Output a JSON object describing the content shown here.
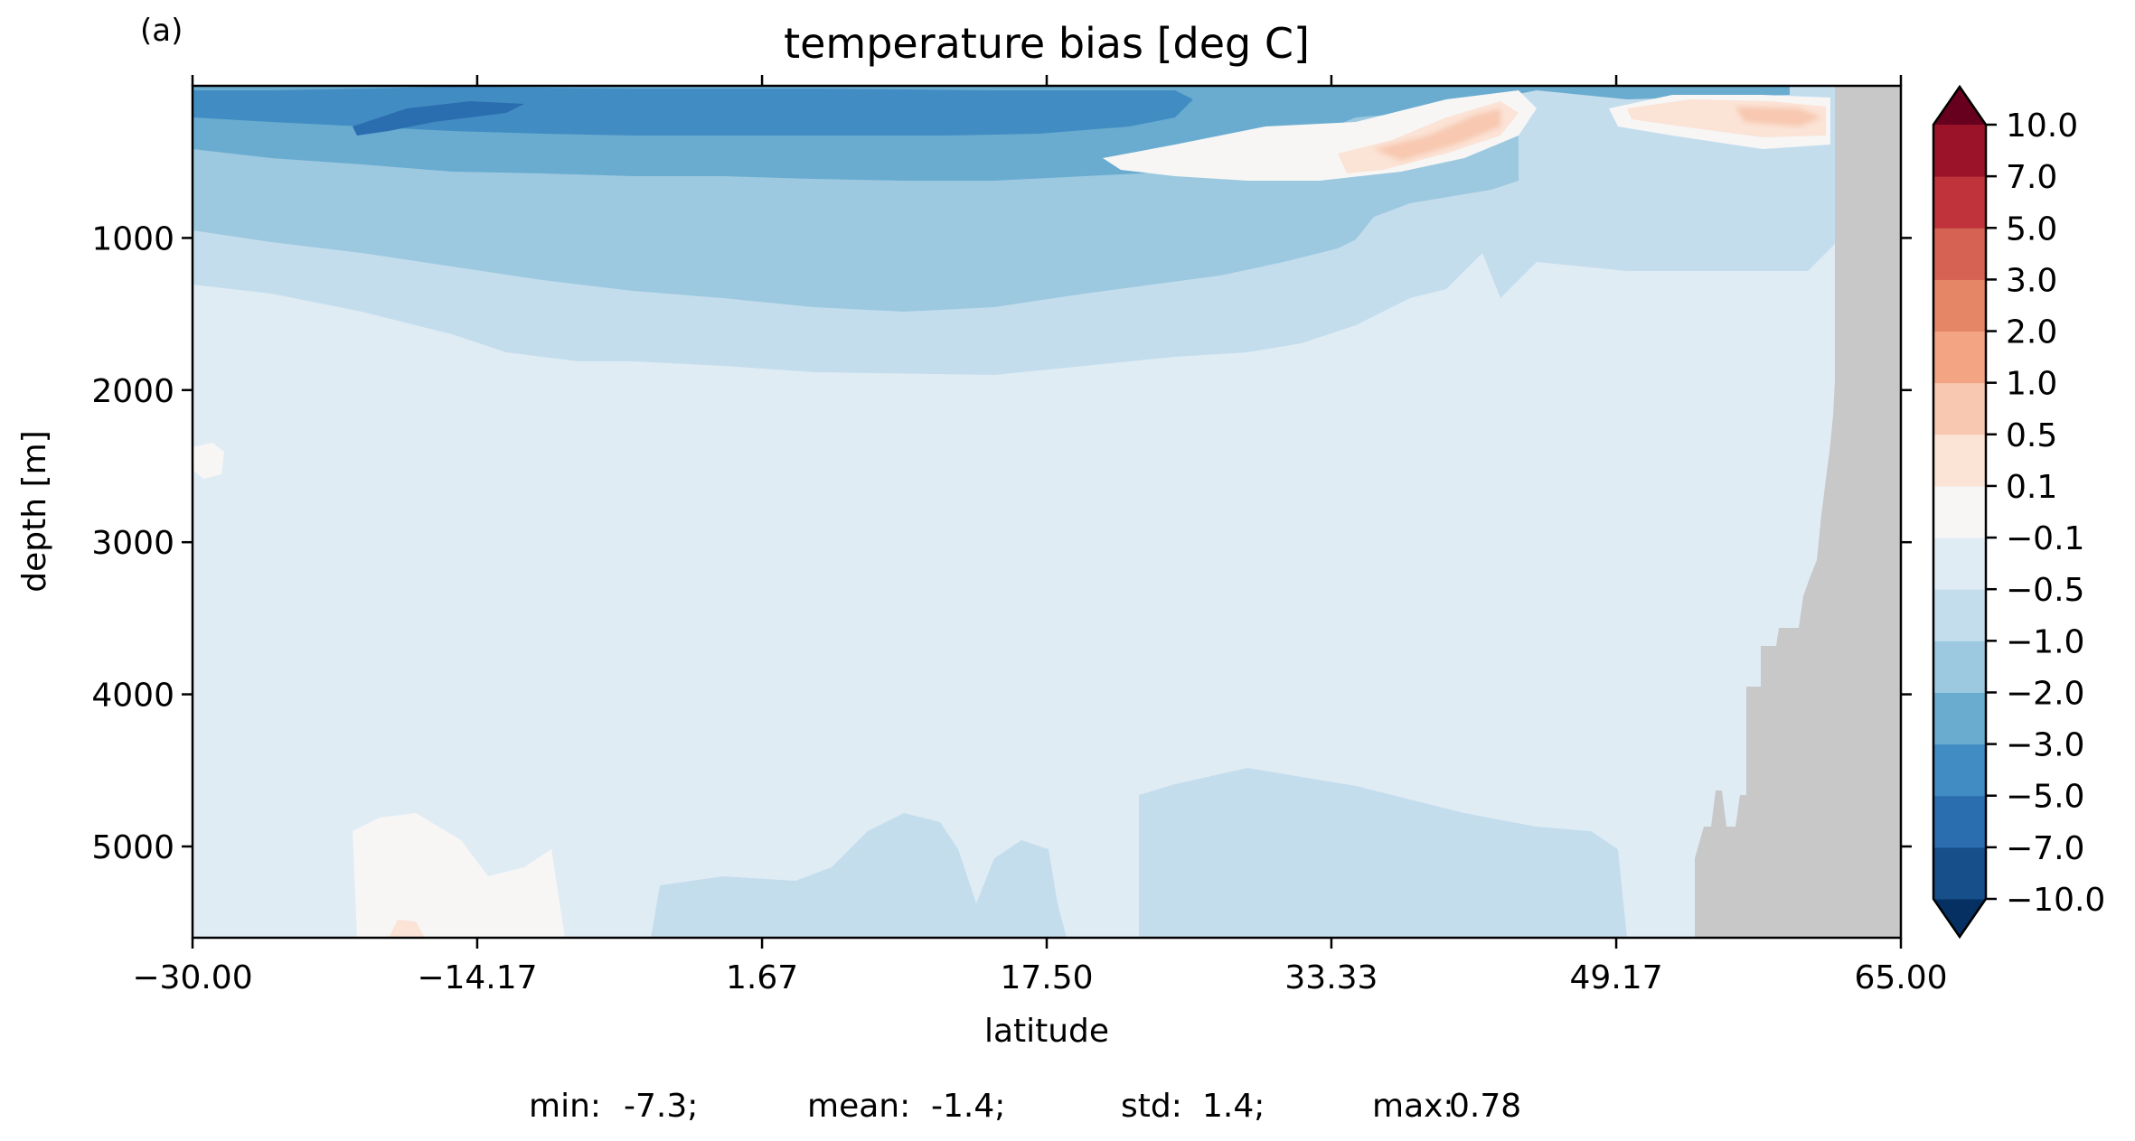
{
  "panel_label": "(a)",
  "chart_data": {
    "type": "heatmap",
    "title": "temperature bias [deg C]",
    "xlabel": "latitude",
    "ylabel": "depth [m]",
    "xlim": [
      -30.0,
      65.0
    ],
    "ylim": [
      5600,
      0
    ],
    "x_ticks": [
      "−30.00",
      "−14.17",
      "1.67",
      "17.50",
      "33.33",
      "49.17",
      "65.00"
    ],
    "x_tick_values": [
      -30.0,
      -14.17,
      1.67,
      17.5,
      33.33,
      49.17,
      65.0
    ],
    "y_ticks": [
      "1000",
      "2000",
      "3000",
      "4000",
      "5000"
    ],
    "y_tick_values": [
      1000,
      2000,
      3000,
      4000,
      5000
    ],
    "colormap": "RdBu_r",
    "colorbar": {
      "levels": [
        -10.0,
        -7.0,
        -5.0,
        -3.0,
        -2.0,
        -1.0,
        -0.5,
        -0.1,
        0.1,
        0.5,
        1.0,
        2.0,
        3.0,
        5.0,
        7.0,
        10.0
      ],
      "labels": [
        "−10.0",
        "−7.0",
        "−5.0",
        "−3.0",
        "−2.0",
        "−1.0",
        "−0.5",
        "−0.1",
        "0.1",
        "0.5",
        "1.0",
        "2.0",
        "3.0",
        "5.0",
        "7.0",
        "10.0"
      ],
      "colors": [
        "#053061",
        "#164f8a",
        "#2b6eb0",
        "#418dc3",
        "#6aacd0",
        "#9cc9e0",
        "#c4dded",
        "#e0ecf4",
        "#f7f6f5",
        "#fbe3d6",
        "#f8c8b0",
        "#f2a483",
        "#e58666",
        "#d66253",
        "#c0333b",
        "#9a1329",
        "#67001f"
      ],
      "extend": "both"
    },
    "land_color": "#c8c8c8",
    "stats": [
      {
        "label": "min:",
        "value": "-7.3;"
      },
      {
        "label": "mean:",
        "value": "-1.4;"
      },
      {
        "label": "std:",
        "value": "1.4;"
      },
      {
        "label": "max:",
        "value": "0.78"
      }
    ]
  }
}
